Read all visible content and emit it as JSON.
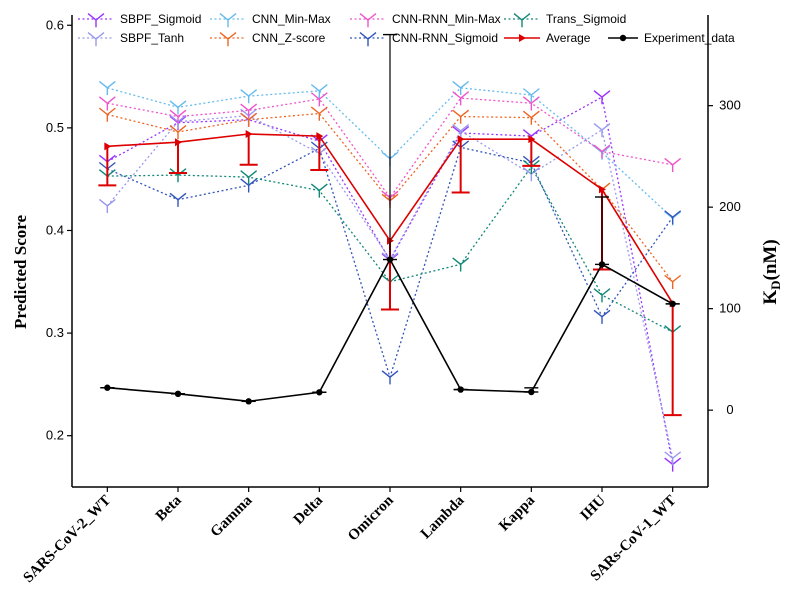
{
  "chart_data": {
    "type": "line",
    "categories": [
      "SARS-CoV-2_WT",
      "Beta",
      "Gamma",
      "Delta",
      "Omicron",
      "Lambda",
      "Kappa",
      "IHU",
      "SARs-CoV-1_WT"
    ],
    "ylabel": "Predicted Score",
    "y2label_main": "K",
    "y2label_sub": "D",
    "y2label_unit": "(nM)",
    "ylim": [
      0.15,
      0.61
    ],
    "yticks": [
      0.2,
      0.3,
      0.4,
      0.5,
      0.6
    ],
    "yticklabels": [
      "0.2",
      "0.3",
      "0.4",
      "0.5",
      "0.6"
    ],
    "y2lim": [
      -75.7,
      389.3
    ],
    "y2ticks": [
      0,
      100,
      200,
      300
    ],
    "y2ticklabels": [
      "0",
      "100",
      "200",
      "300"
    ],
    "grid": false,
    "legend_position": "top",
    "series": [
      {
        "name": "SBPF_Sigmoid",
        "color": "#9933ff",
        "style": "dotted",
        "marker": "tri",
        "axis": "left",
        "values": [
          0.467,
          0.505,
          0.508,
          0.487,
          0.371,
          0.495,
          0.492,
          0.53,
          0.172
        ]
      },
      {
        "name": "SBPF_Tanh",
        "color": "#9999ee",
        "style": "dotted",
        "marker": "tri",
        "axis": "left",
        "values": [
          0.424,
          0.506,
          0.512,
          0.475,
          0.372,
          0.497,
          0.455,
          0.498,
          0.178
        ]
      },
      {
        "name": "CNN_Min-Max",
        "color": "#66bbee",
        "style": "dotted",
        "marker": "tri",
        "axis": "left",
        "values": [
          0.539,
          0.52,
          0.531,
          0.536,
          0.47,
          0.539,
          0.532,
          0.476,
          0.412
        ]
      },
      {
        "name": "CNN_Z-score",
        "color": "#ee6622",
        "style": "dotted",
        "marker": "tri",
        "axis": "left",
        "values": [
          0.513,
          0.496,
          0.508,
          0.514,
          0.429,
          0.511,
          0.51,
          0.44,
          0.35
        ]
      },
      {
        "name": "CNN-RNN_Min-Max",
        "color": "#ee55cc",
        "style": "dotted",
        "marker": "tri",
        "axis": "left",
        "values": [
          0.524,
          0.511,
          0.517,
          0.528,
          0.432,
          0.529,
          0.524,
          0.477,
          0.464
        ]
      },
      {
        "name": "CNN-RNN_Sigmoid",
        "color": "#3355bb",
        "style": "dotted",
        "marker": "tri",
        "axis": "left",
        "values": [
          0.46,
          0.43,
          0.444,
          0.48,
          0.257,
          0.481,
          0.466,
          0.316,
          0.413
        ]
      },
      {
        "name": "Trans_Sigmoid",
        "color": "#118877",
        "style": "dotted",
        "marker": "tri",
        "axis": "left",
        "values": [
          0.453,
          0.454,
          0.452,
          0.439,
          0.35,
          0.367,
          0.462,
          0.337,
          0.301
        ]
      },
      {
        "name": "Average",
        "color": "#dd0000",
        "style": "solid",
        "marker": "arrow",
        "axis": "left",
        "values": [
          0.482,
          0.486,
          0.494,
          0.492,
          0.39,
          0.489,
          0.489,
          0.44,
          0.329
        ],
        "err_low": [
          0.444,
          0.456,
          0.464,
          0.459,
          0.323,
          0.437,
          0.463,
          0.362,
          0.22
        ],
        "err_high": [
          0.482,
          0.486,
          0.494,
          0.492,
          0.39,
          0.489,
          0.489,
          0.44,
          0.329
        ]
      },
      {
        "name": "Experiment_data",
        "color": "#000000",
        "style": "solid",
        "marker": "circle",
        "axis": "right",
        "values": [
          22.1,
          16.1,
          8.7,
          17.6,
          148.4,
          20.3,
          17.9,
          143.6,
          104.7
        ],
        "err_low": [
          22.1,
          16.1,
          8.7,
          17.6,
          148.4,
          20.3,
          17.9,
          143.6,
          104.7
        ],
        "err_high": [
          22.1,
          16.1,
          8.7,
          17.6,
          370.0,
          20.3,
          17.9,
          210.0,
          104.7
        ],
        "err_cap_top": [
          22.1,
          16.1,
          8.7,
          17.6,
          148.4,
          20.3,
          22.0,
          143.6,
          104.7
        ]
      }
    ]
  }
}
